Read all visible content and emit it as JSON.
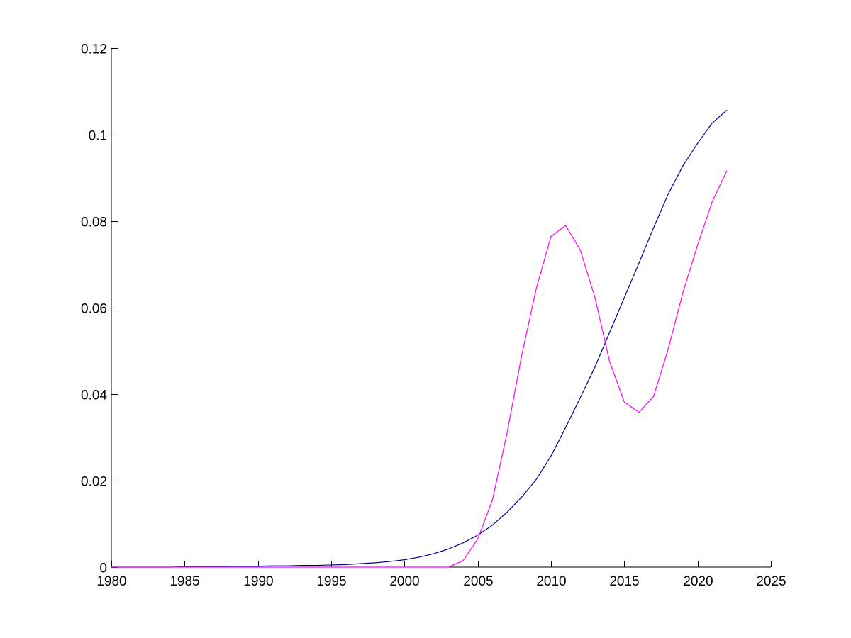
{
  "chart_data": {
    "type": "line",
    "title": "",
    "xlabel": "",
    "ylabel": "",
    "xlim": [
      1980,
      2025
    ],
    "ylim": [
      0,
      0.12
    ],
    "grid": false,
    "legend": "none",
    "x_ticks": [
      "1980",
      "1985",
      "1990",
      "1995",
      "2000",
      "2005",
      "2010",
      "2015",
      "2020",
      "2025"
    ],
    "y_ticks": [
      "0",
      "0.02",
      "0.04",
      "0.06",
      "0.08",
      "0.1",
      "0.12"
    ],
    "series": [
      {
        "color": "#00008b",
        "x": [
          1980,
          1981,
          1982,
          1983,
          1984,
          1985,
          1986,
          1987,
          1988,
          1989,
          1990,
          1991,
          1992,
          1993,
          1994,
          1995,
          1996,
          1997,
          1998,
          1999,
          2000,
          2001,
          2002,
          2003,
          2004,
          2005,
          2006,
          2007,
          2008,
          2009,
          2010,
          2011,
          2012,
          2013,
          2014,
          2015,
          2016,
          2017,
          2018,
          2019,
          2020,
          2021,
          2022
        ],
        "y": [
          0,
          0,
          0,
          0,
          0,
          0.0001,
          0.0001,
          0.0001,
          0.0002,
          0.0002,
          0.0002,
          0.0003,
          0.0003,
          0.0004,
          0.0004,
          0.0005,
          0.0006,
          0.0008,
          0.001,
          0.0013,
          0.0017,
          0.0023,
          0.0031,
          0.0042,
          0.0056,
          0.0074,
          0.0097,
          0.0127,
          0.0162,
          0.0203,
          0.0257,
          0.0323,
          0.0392,
          0.0463,
          0.0543,
          0.0623,
          0.0703,
          0.0785,
          0.0863,
          0.0928,
          0.098,
          0.1027,
          0.1057
        ]
      },
      {
        "color": "#ff00ff",
        "x": [
          1980,
          1985,
          1990,
          1995,
          2000,
          2001,
          2002,
          2003,
          2004,
          2005,
          2006,
          2007,
          2008,
          2009,
          2010,
          2011,
          2012,
          2013,
          2014,
          2015,
          2016,
          2017,
          2018,
          2019,
          2020,
          2021,
          2022
        ],
        "y": [
          0,
          0,
          0,
          0,
          0,
          0,
          0,
          0,
          0.0015,
          0.0065,
          0.0155,
          0.031,
          0.049,
          0.0645,
          0.0765,
          0.079,
          0.0733,
          0.0623,
          0.0475,
          0.0382,
          0.0358,
          0.0395,
          0.0505,
          0.0635,
          0.0745,
          0.0845,
          0.0917
        ]
      }
    ]
  }
}
